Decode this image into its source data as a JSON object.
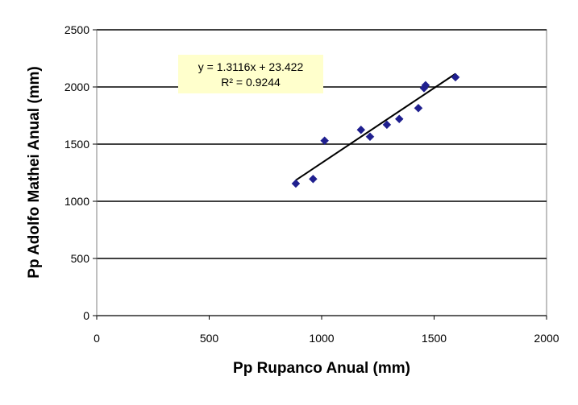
{
  "chart_data": {
    "type": "scatter",
    "title": "",
    "xlabel": "Pp Rupanco Anual (mm)",
    "ylabel": "Pp Adolfo Mathei Anual (mm)",
    "xlim": [
      0,
      2000
    ],
    "ylim": [
      0,
      2500
    ],
    "x_ticks": [
      "0",
      "500",
      "1000",
      "1500",
      "2000"
    ],
    "y_ticks": [
      "0",
      "500",
      "1000",
      "1500",
      "2000",
      "2500"
    ],
    "grid": "horizontal",
    "series": [
      {
        "points": [
          {
            "x": 885,
            "y": 1155
          },
          {
            "x": 962,
            "y": 1195
          },
          {
            "x": 1013,
            "y": 1530
          },
          {
            "x": 1175,
            "y": 1625
          },
          {
            "x": 1215,
            "y": 1565
          },
          {
            "x": 1290,
            "y": 1670
          },
          {
            "x": 1345,
            "y": 1720
          },
          {
            "x": 1430,
            "y": 1815
          },
          {
            "x": 1455,
            "y": 1990
          },
          {
            "x": 1462,
            "y": 2015
          },
          {
            "x": 1595,
            "y": 2085
          }
        ],
        "color": "#1f1f8f"
      }
    ],
    "trendline": {
      "slope": 1.3116,
      "intercept": 23.422,
      "x_range": [
        885,
        1595
      ],
      "color": "#000000"
    },
    "annotation": {
      "equation": "y = 1.3116x + 23.422",
      "r2": "R² = 0.9244",
      "background": "#ffffcc"
    },
    "colors": {
      "grid": "#000000",
      "plot_border": "#808080"
    }
  }
}
